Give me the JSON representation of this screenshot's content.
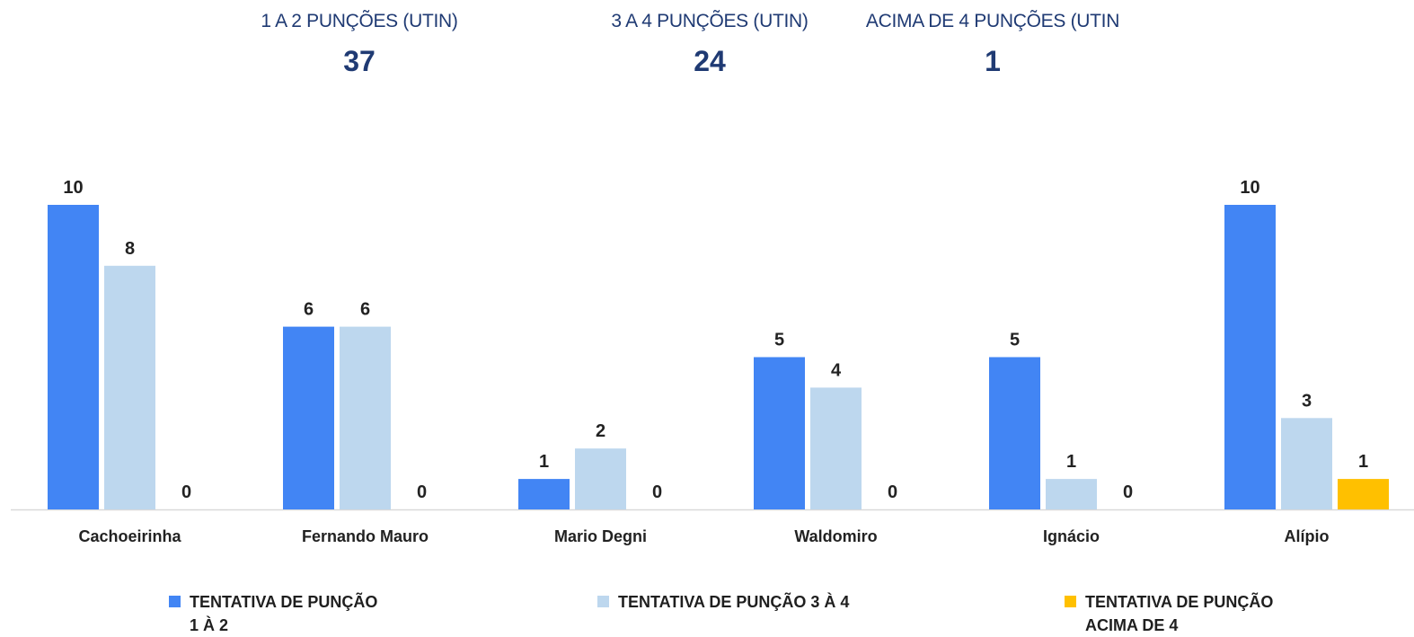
{
  "kpis": [
    {
      "label": "1 A 2 PUNÇÕES (UTIN)",
      "value": "37"
    },
    {
      "label": "3 A 4 PUNÇÕES (UTIN)",
      "value": "24"
    },
    {
      "label": "ACIMA DE 4 PUNÇÕES (UTIN",
      "value": "1"
    }
  ],
  "chart_data": {
    "type": "bar",
    "categories": [
      "Cachoeirinha",
      "Fernando Mauro",
      "Mario Degni",
      "Waldomiro",
      "Ignácio",
      "Alípio"
    ],
    "series": [
      {
        "name": "TENTATIVA DE PUNÇÃO\n1 À 2",
        "color": "#4285f4",
        "values": [
          10,
          6,
          1,
          5,
          5,
          10
        ]
      },
      {
        "name": "TENTATIVA DE PUNÇÃO 3 À 4",
        "color": "#bdd7ee",
        "values": [
          8,
          6,
          2,
          4,
          1,
          3
        ]
      },
      {
        "name": "TENTATIVA DE PUNÇÃO\nACIMA DE 4",
        "color": "#ffc000",
        "values": [
          0,
          0,
          0,
          0,
          0,
          1
        ]
      }
    ],
    "ylim": [
      0,
      10
    ],
    "grid": false,
    "legend": "bottom"
  }
}
